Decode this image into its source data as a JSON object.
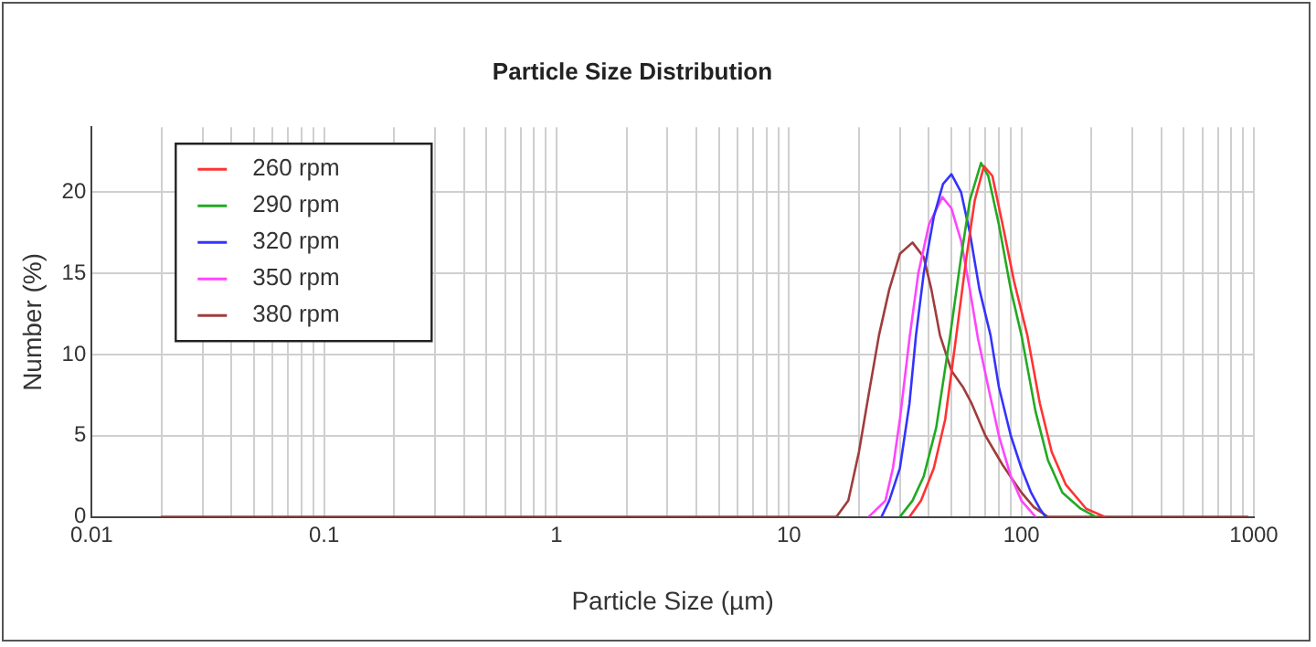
{
  "chart_data": {
    "type": "line",
    "title": "Particle Size Distribution",
    "xlabel": "Particle Size (µm)",
    "ylabel": "Number (%)",
    "log": "x",
    "grid": true,
    "legend": "top left",
    "marker": "none",
    "line_style": "solid",
    "xlim": [
      0.01,
      1000
    ],
    "xticks": [
      0.01,
      {
        "value": 0.02,
        "label": null
      },
      {
        "value": 0.03,
        "label": null
      },
      {
        "value": 0.04,
        "label": null
      },
      {
        "value": 0.05,
        "label": null
      },
      {
        "value": 0.06,
        "label": null
      },
      {
        "value": 0.07,
        "label": null
      },
      {
        "value": 0.08,
        "label": null
      },
      {
        "value": 0.09,
        "label": null
      },
      0.1,
      {
        "value": 0.2,
        "label": null
      },
      {
        "value": 0.3,
        "label": null
      },
      {
        "value": 0.4,
        "label": null
      },
      {
        "value": 0.5,
        "label": null
      },
      {
        "value": 0.6,
        "label": null
      },
      {
        "value": 0.7,
        "label": null
      },
      {
        "value": 0.8,
        "label": null
      },
      {
        "value": 0.9,
        "label": null
      },
      1,
      {
        "value": 2,
        "label": null
      },
      {
        "value": 3,
        "label": null
      },
      {
        "value": 4,
        "label": null
      },
      {
        "value": 5,
        "label": null
      },
      {
        "value": 6,
        "label": null
      },
      {
        "value": 7,
        "label": null
      },
      {
        "value": 8,
        "label": null
      },
      {
        "value": 9,
        "label": null
      },
      10,
      {
        "value": 20,
        "label": null
      },
      {
        "value": 30,
        "label": null
      },
      {
        "value": 40,
        "label": null
      },
      {
        "value": 50,
        "label": null
      },
      {
        "value": 60,
        "label": null
      },
      {
        "value": 70,
        "label": null
      },
      {
        "value": 80,
        "label": null
      },
      {
        "value": 90,
        "label": null
      },
      100,
      {
        "value": 200,
        "label": null
      },
      {
        "value": 300,
        "label": null
      },
      {
        "value": 400,
        "label": null
      },
      {
        "value": 500,
        "label": null
      },
      {
        "value": 600,
        "label": null
      },
      {
        "value": 700,
        "label": null
      },
      {
        "value": 800,
        "label": null
      },
      {
        "value": 900,
        "label": null
      },
      1000
    ],
    "ylim": [
      0,
      24
    ],
    "yticks": [
      0,
      5,
      10,
      15,
      20
    ],
    "series": [
      {
        "name": "260 rpm",
        "color": "#ff3333",
        "x": [
          33,
          37,
          42,
          47,
          52.5,
          58,
          63,
          69,
          75,
          83,
          93,
          106,
          120,
          135,
          155,
          190,
          229
        ],
        "values": [
          0,
          1,
          3,
          6,
          11.2,
          16,
          19.5,
          21.6,
          21,
          18,
          14.5,
          11.2,
          7,
          4,
          2,
          0.5,
          0
        ]
      },
      {
        "name": "290 rpm",
        "color": "#22aa22",
        "x": [
          30,
          34,
          38,
          43,
          49.4,
          55,
          60,
          67,
          72,
          80,
          90,
          100,
          115,
          130,
          150,
          180,
          209
        ],
        "values": [
          0,
          1,
          2.5,
          5.5,
          11.2,
          16,
          19.5,
          21.8,
          21,
          18,
          14,
          11.2,
          6.5,
          3.5,
          1.5,
          0.5,
          0
        ]
      },
      {
        "name": "320 rpm",
        "color": "#3333ff",
        "x": [
          25,
          27,
          30,
          33,
          35.2,
          38,
          42,
          46,
          50,
          55,
          60,
          66,
          73.6,
          80,
          90,
          100,
          110,
          120,
          127
        ],
        "values": [
          0,
          1,
          3,
          7,
          11.2,
          15,
          18.5,
          20.5,
          21.1,
          20,
          17.5,
          14,
          11.2,
          8,
          5,
          3,
          1.5,
          0.5,
          0
        ]
      },
      {
        "name": "350 rpm",
        "color": "#ff44ff",
        "x": [
          22,
          26,
          28,
          30,
          33,
          36,
          40,
          45.7,
          50,
          55,
          60,
          65,
          72,
          80,
          90,
          100,
          115
        ],
        "values": [
          0,
          1,
          3,
          6,
          11,
          15,
          18,
          19.7,
          19,
          17,
          14,
          11,
          8,
          5,
          2.5,
          1,
          0
        ]
      },
      {
        "name": "380 rpm",
        "color": "#a03c3c",
        "x": [
          0.02,
          16,
          18,
          20,
          22,
          24.4,
          27,
          30,
          34,
          38,
          41,
          44.6,
          50,
          56,
          61,
          70,
          83,
          100,
          113,
          130,
          940
        ],
        "values": [
          0,
          0,
          1,
          4,
          7.5,
          11.2,
          14,
          16.2,
          16.9,
          16,
          14,
          11.2,
          9,
          8,
          7,
          5,
          3.2,
          1.5,
          0.6,
          0,
          0
        ]
      }
    ]
  }
}
